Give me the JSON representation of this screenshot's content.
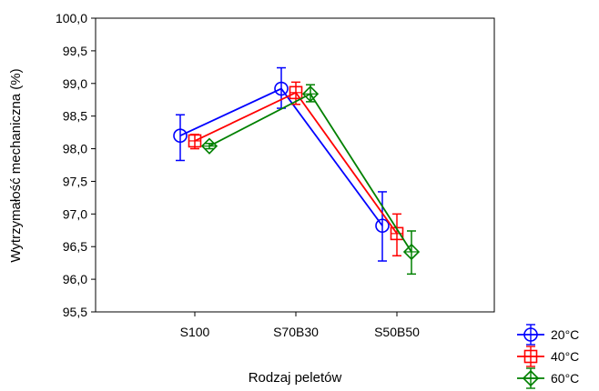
{
  "chart_data": {
    "type": "line",
    "title": "",
    "xlabel": "Rodzaj peletów",
    "ylabel": "Wytrzymałość mechaniczna (%)",
    "categories": [
      "S100",
      "S70B30",
      "S50B50"
    ],
    "ylim": [
      95.5,
      100.0
    ],
    "yticks": [
      "95,5",
      "96,0",
      "96,5",
      "97,0",
      "97,5",
      "98,0",
      "98,5",
      "99,0",
      "99,5",
      "100,0"
    ],
    "grid": false,
    "legend_position": "bottom-right",
    "error_bars": true,
    "series": [
      {
        "name": "20°C",
        "color": "#0000ff",
        "marker": "circle",
        "values": [
          98.2,
          98.92,
          96.82
        ],
        "err_low": [
          97.82,
          98.62,
          96.28
        ],
        "err_high": [
          98.52,
          99.24,
          97.34
        ]
      },
      {
        "name": "40°C",
        "color": "#ff0000",
        "marker": "square",
        "values": [
          98.12,
          98.86,
          96.7
        ],
        "err_low": [
          98.0,
          98.68,
          96.36
        ],
        "err_high": [
          98.22,
          99.02,
          97.0
        ]
      },
      {
        "name": "60°C",
        "color": "#008000",
        "marker": "diamond",
        "values": [
          98.04,
          98.84,
          96.42
        ],
        "err_low": [
          98.0,
          98.72,
          96.08
        ],
        "err_high": [
          98.08,
          98.98,
          96.74
        ]
      }
    ]
  }
}
